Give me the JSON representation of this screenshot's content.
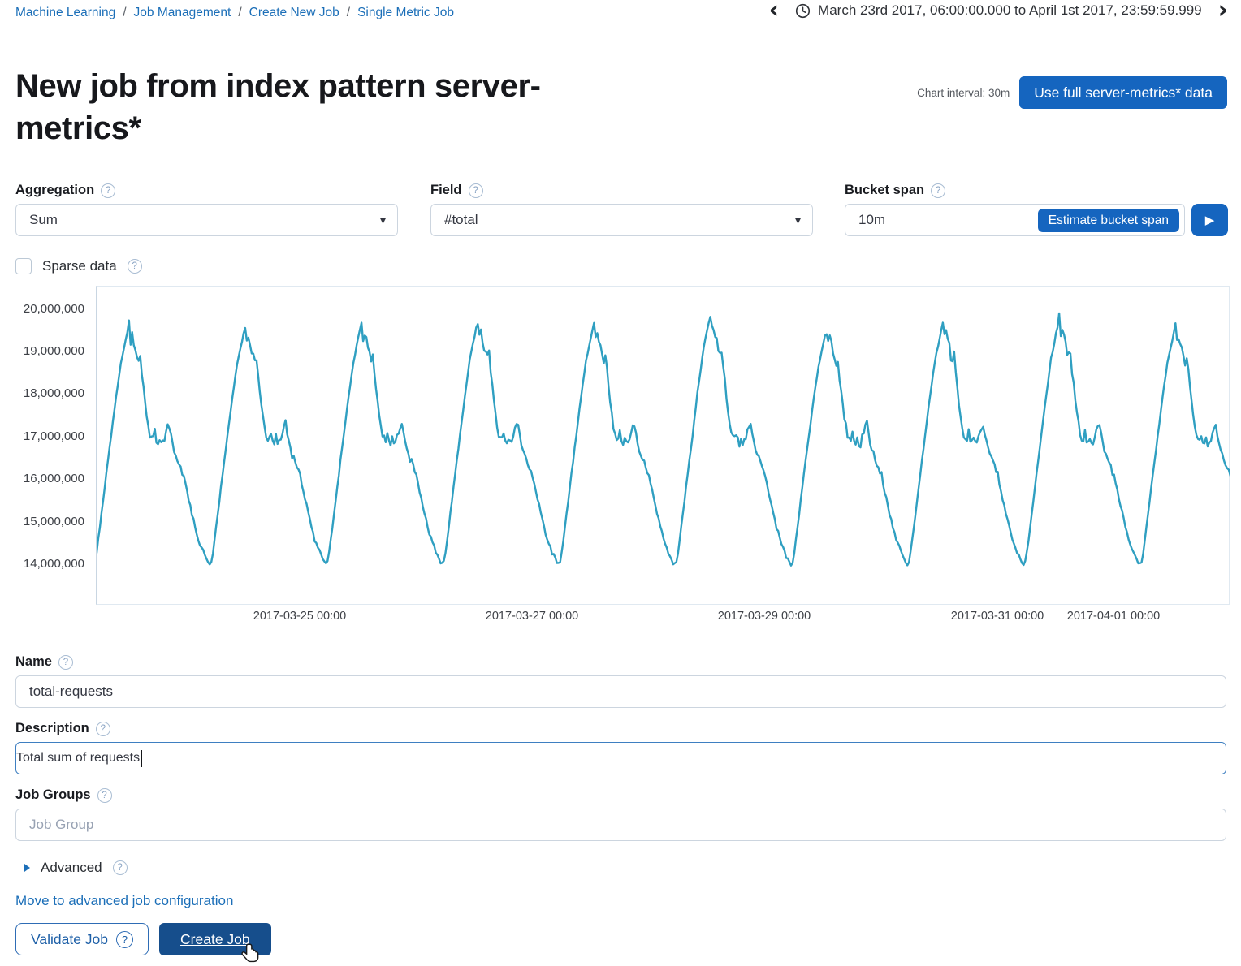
{
  "breadcrumb": {
    "separator": "/",
    "items": [
      "Machine Learning",
      "Job Management",
      "Create New Job",
      "Single Metric Job"
    ]
  },
  "timerange": {
    "label": "March 23rd 2017, 06:00:00.000 to April 1st 2017, 23:59:59.999",
    "prev_icon": "‹",
    "next_icon": "›"
  },
  "header": {
    "title": "New job from index pattern server-metrics*",
    "chart_interval_label": "Chart interval: 30m",
    "use_full_data_button": "Use full server-metrics* data"
  },
  "form": {
    "aggregation": {
      "label": "Aggregation",
      "value": "Sum",
      "caret_icon": "▾"
    },
    "field": {
      "label": "Field",
      "value": "#total",
      "caret_icon": "▾"
    },
    "bucket_span": {
      "label": "Bucket span",
      "value": "10m",
      "estimate_button": "Estimate bucket span",
      "play_icon": "▶"
    },
    "sparse_data": {
      "label": "Sparse data",
      "checked": false
    },
    "name": {
      "label": "Name",
      "value": "total-requests"
    },
    "description": {
      "label": "Description",
      "value": "Total sum of requests"
    },
    "job_groups": {
      "label": "Job Groups",
      "placeholder": "Job Group"
    },
    "advanced": {
      "label": "Advanced"
    },
    "move_link": "Move to advanced job configuration",
    "validate_button": "Validate Job",
    "create_button": "Create Job",
    "help_icon_glyph": "?"
  },
  "chart_data": {
    "type": "line",
    "title": "",
    "xlabel": "",
    "ylabel": "",
    "legend": false,
    "grid": false,
    "color": "#2f9fc1",
    "x_start": "2017-03-23 06:00",
    "x_end": "2017-04-02 00:00",
    "start_hour": 6,
    "end_hour": 240,
    "step_hours": 0.3333,
    "y_unit": "requests",
    "y_ticks": [
      {
        "label": "20,000,000",
        "value_millions": 20
      },
      {
        "label": "19,000,000",
        "value_millions": 19
      },
      {
        "label": "18,000,000",
        "value_millions": 18
      },
      {
        "label": "17,000,000",
        "value_millions": 17
      },
      {
        "label": "16,000,000",
        "value_millions": 16
      },
      {
        "label": "15,000,000",
        "value_millions": 15
      },
      {
        "label": "14,000,000",
        "value_millions": 14
      }
    ],
    "x_ticks": [
      {
        "label": "2017-03-25 00:00",
        "hour": 48
      },
      {
        "label": "2017-03-27 00:00",
        "hour": 96
      },
      {
        "label": "2017-03-29 00:00",
        "hour": 144
      },
      {
        "label": "2017-03-31 00:00",
        "hour": 192
      },
      {
        "label": "2017-04-01 00:00",
        "hour": 216
      }
    ],
    "ylim_millions": [
      13.05,
      20.55
    ],
    "daily_pattern": {
      "comment": "sum(total) per 30m bucket, values in millions; repeating daily cycle: trough ~14.0M at ~05:30, peak ~19.65M at ~12:40, noisy plateau ~17M evenings",
      "hours": [
        0,
        1,
        2,
        3,
        4,
        5,
        5.5,
        6,
        7,
        8,
        9,
        10,
        11,
        12,
        12.7,
        13.1,
        13.4,
        13.7,
        14,
        14.5,
        15,
        15.5,
        16,
        16.5,
        17,
        17.5,
        18,
        18.5,
        19,
        19.5,
        20,
        20.5,
        21,
        21.5,
        22,
        22.5,
        23,
        24
      ],
      "values": [
        16.1,
        15.55,
        15.05,
        14.6,
        14.3,
        14.05,
        13.98,
        14.3,
        15.2,
        16.15,
        17.05,
        17.95,
        18.75,
        19.3,
        19.68,
        19.15,
        19.5,
        19.2,
        19.05,
        18.8,
        18.85,
        18.35,
        17.8,
        17.35,
        17.05,
        16.9,
        17.1,
        16.78,
        17.0,
        16.82,
        17.0,
        17.22,
        17.32,
        16.95,
        16.72,
        16.55,
        16.42,
        16.1
      ]
    },
    "peak_adjust_by_day": [
      0,
      -0.05,
      0.05,
      0.1,
      0.05,
      0.25,
      -0.1,
      0.05,
      0.15,
      0
    ],
    "noise": {
      "night": 0.08,
      "rise": 0.05,
      "peak": 0.2,
      "plateau": 0.15
    },
    "min_value_millions": 13.88
  }
}
